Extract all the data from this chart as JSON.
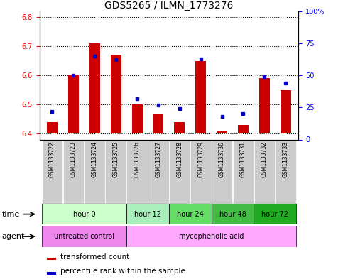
{
  "title": "GDS5265 / ILMN_1773276",
  "samples": [
    "GSM1133722",
    "GSM1133723",
    "GSM1133724",
    "GSM1133725",
    "GSM1133726",
    "GSM1133727",
    "GSM1133728",
    "GSM1133729",
    "GSM1133730",
    "GSM1133731",
    "GSM1133732",
    "GSM1133733"
  ],
  "transformed_count": [
    6.44,
    6.6,
    6.71,
    6.67,
    6.5,
    6.47,
    6.44,
    6.65,
    6.41,
    6.43,
    6.59,
    6.55
  ],
  "percentile_rank": [
    22,
    50,
    65,
    62,
    32,
    27,
    24,
    63,
    18,
    20,
    49,
    44
  ],
  "bar_bottom": 6.4,
  "ylim_left": [
    6.38,
    6.82
  ],
  "ylim_right": [
    0,
    100
  ],
  "yticks_left": [
    6.4,
    6.5,
    6.6,
    6.7,
    6.8
  ],
  "yticks_right": [
    0,
    25,
    50,
    75,
    100
  ],
  "ytick_labels_right": [
    "0",
    "25",
    "50",
    "75",
    "100%"
  ],
  "bar_color": "#cc0000",
  "dot_color": "#0000cc",
  "time_groups": [
    {
      "label": "hour 0",
      "start": 0,
      "end": 4,
      "color": "#ccffcc"
    },
    {
      "label": "hour 12",
      "start": 4,
      "end": 6,
      "color": "#aaeebb"
    },
    {
      "label": "hour 24",
      "start": 6,
      "end": 8,
      "color": "#66dd66"
    },
    {
      "label": "hour 48",
      "start": 8,
      "end": 10,
      "color": "#44bb44"
    },
    {
      "label": "hour 72",
      "start": 10,
      "end": 12,
      "color": "#22aa22"
    }
  ],
  "agent_groups": [
    {
      "label": "untreated control",
      "start": 0,
      "end": 4,
      "color": "#ee88ee"
    },
    {
      "label": "mycophenolic acid",
      "start": 4,
      "end": 12,
      "color": "#ffaaff"
    }
  ],
  "sample_bg_color": "#cccccc",
  "legend_red_label": "transformed count",
  "legend_blue_label": "percentile rank within the sample",
  "time_label": "time",
  "agent_label": "agent",
  "title_fontsize": 10,
  "label_fontsize": 7,
  "bar_width": 0.5
}
